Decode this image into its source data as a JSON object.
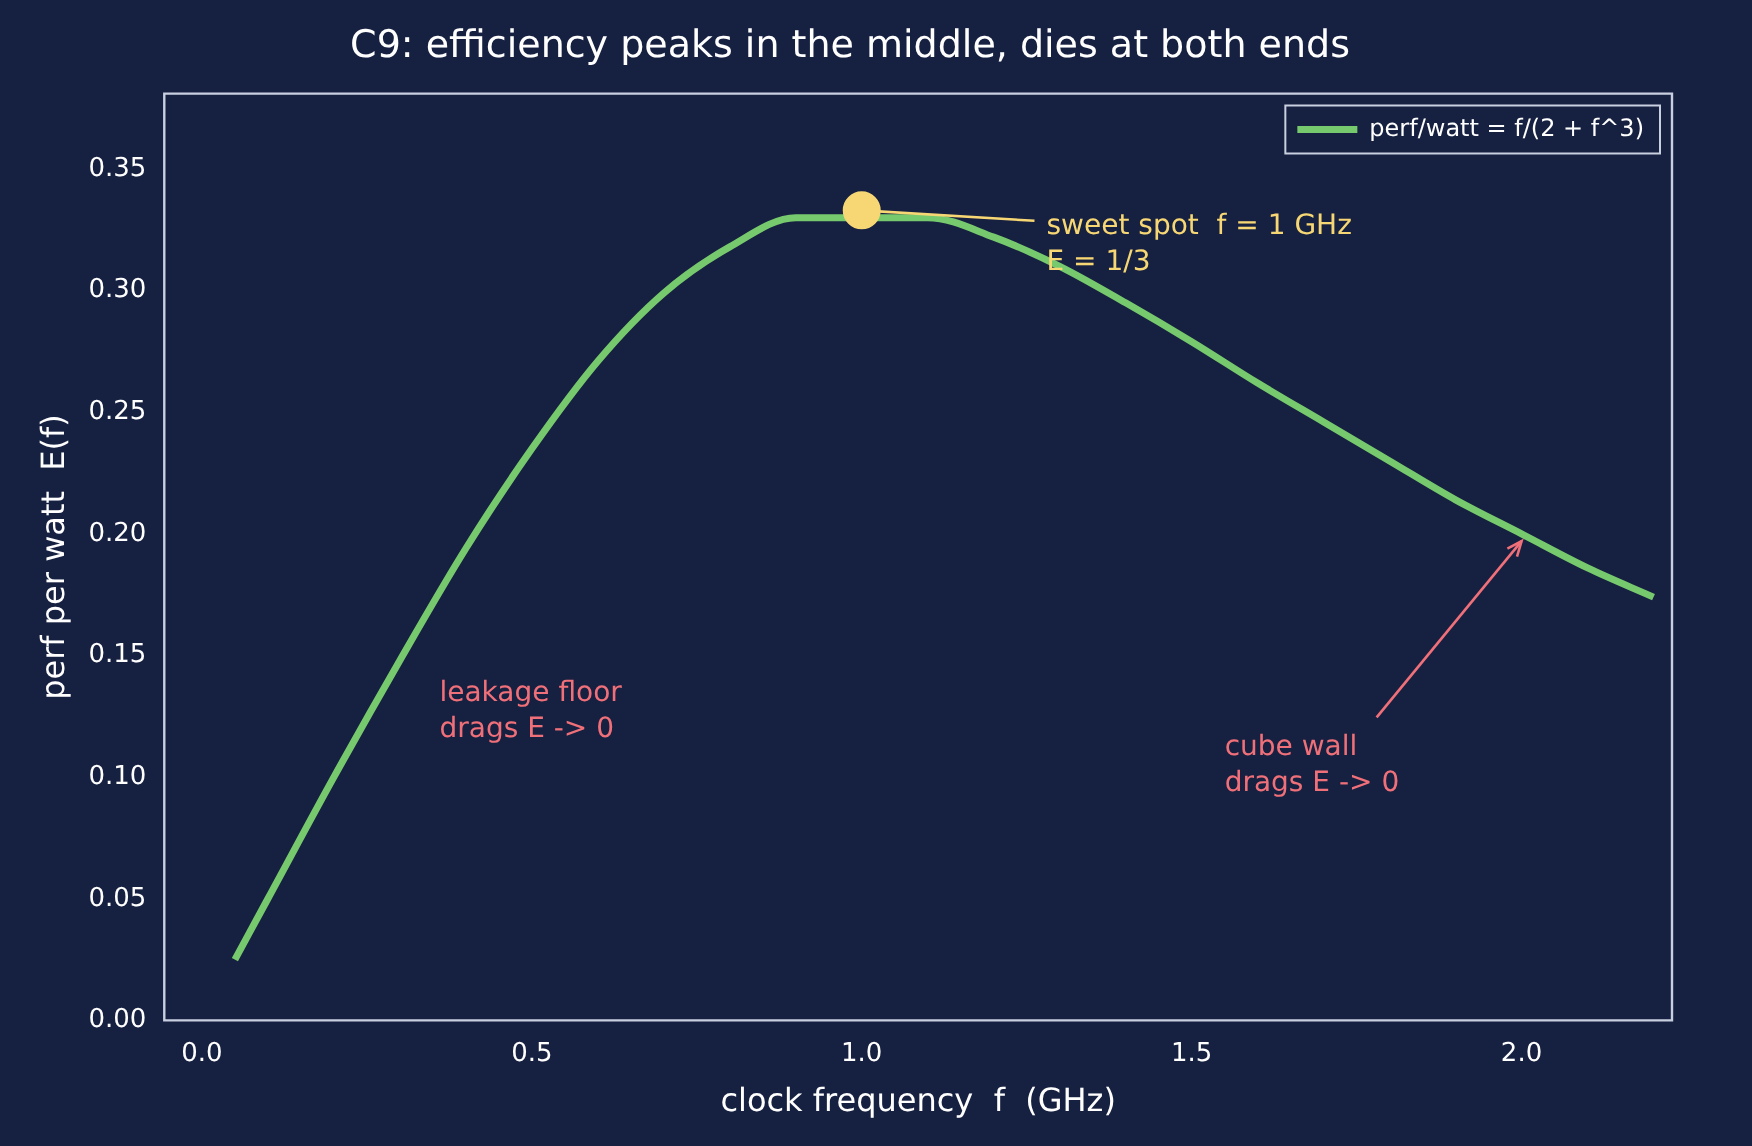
{
  "chart_data": {
    "type": "line",
    "title": "C9: efficiency peaks in the middle, dies at both ends",
    "xlabel": "clock frequency  f  (GHz)",
    "ylabel": "perf per watt  E(f)",
    "x": [
      0.05,
      0.1,
      0.2,
      0.3,
      0.4,
      0.5,
      0.6,
      0.7,
      0.8,
      0.9,
      1.0,
      1.1,
      1.2,
      1.3,
      1.4,
      1.5,
      1.6,
      1.7,
      1.8,
      1.9,
      2.0,
      2.1,
      2.2
    ],
    "series": [
      {
        "name": "perf/watt = f/(2 + f^3)",
        "color": "#77c96e",
        "marker": "none",
        "values": [
          0.025,
          0.05,
          0.1,
          0.148,
          0.194,
          0.235,
          0.271,
          0.299,
          0.318,
          0.33,
          null,
          0.33,
          0.322,
          0.31,
          0.295,
          0.279,
          0.262,
          0.246,
          0.23,
          0.214,
          0.2,
          0.186,
          0.174
        ]
      },
      {
        "type": "scatter",
        "color": "#f7d774",
        "marker": "circle",
        "x": [
          1.0
        ],
        "values": [
          0.333
        ]
      }
    ],
    "xlim": [
      -0.057,
      2.228
    ],
    "ylim": [
      0,
      0.381
    ],
    "xticks": [
      {
        "value": 0,
        "label": "0.0"
      },
      {
        "value": 0.5,
        "label": "0.5"
      },
      {
        "value": 1,
        "label": "1.0"
      },
      {
        "value": 1.5,
        "label": "1.5"
      },
      {
        "value": 2,
        "label": "2.0"
      }
    ],
    "yticks": [
      {
        "value": 0,
        "label": "0.00"
      },
      {
        "value": 0.05,
        "label": "0.05"
      },
      {
        "value": 0.1,
        "label": "0.10"
      },
      {
        "value": 0.15,
        "label": "0.15"
      },
      {
        "value": 0.2,
        "label": "0.20"
      },
      {
        "value": 0.25,
        "label": "0.25"
      },
      {
        "value": 0.3,
        "label": "0.30"
      },
      {
        "value": 0.35,
        "label": "0.35"
      }
    ],
    "grid": false,
    "legend": "top right",
    "annotations": [
      {
        "text": "sweet spot  f = 1 GHz\nE = 1/3",
        "x": 1.0,
        "y": 0.333
      },
      {
        "text": "cube wall\ndrags E -> 0",
        "x": 2.0,
        "y": 0.197
      },
      "leakage floor\ndrags E -> 0"
    ]
  }
}
